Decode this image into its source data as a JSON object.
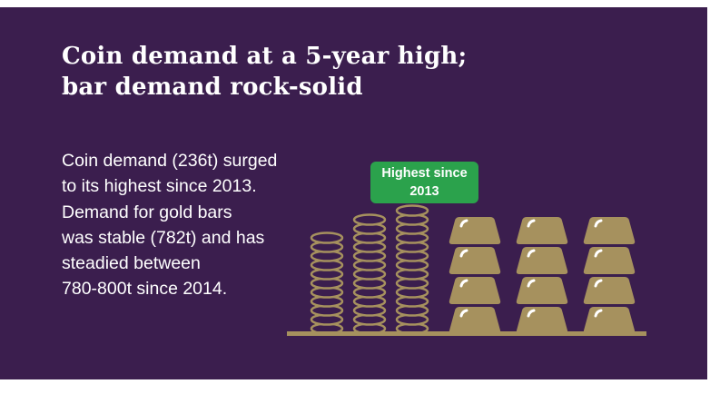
{
  "slide": {
    "title": "Coin demand at a 5-year high;\nbar demand rock-solid",
    "body": "Coin demand (236t) surged\nto its highest since 2013.\nDemand for gold bars\nwas stable (782t) and has\nsteadied between\n780-800t since 2014.",
    "badge": "Highest since\n2013"
  },
  "colors": {
    "background": "#3B1E4E",
    "gold": "#A6915E",
    "green": "#2BA24C",
    "text": "#FFFFFF"
  },
  "illustration": {
    "coin_stacks": [
      11,
      13,
      14
    ],
    "bar_rows": 4,
    "bar_columns": 3
  },
  "chart_data": {
    "type": "bar",
    "title": "Coin demand at a 5-year high; bar demand rock-solid",
    "categories": [
      "Coin demand",
      "Gold bar demand"
    ],
    "values": [
      236,
      782
    ],
    "unit": "tonnes (t)",
    "annotations": [
      "Coin demand (236t) highest since 2013",
      "Bar demand stable (782t), steadied between 780-800t since 2014"
    ],
    "legend_position": "none",
    "grid": false
  }
}
